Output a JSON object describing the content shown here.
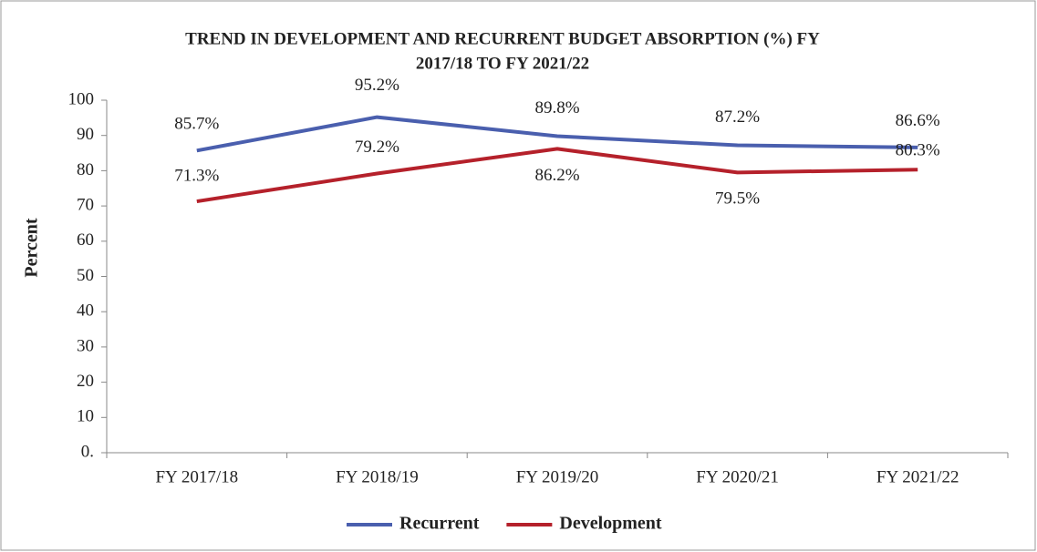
{
  "chart_data": {
    "type": "line",
    "title": [
      "TREND IN DEVELOPMENT AND RECURRENT BUDGET ABSORPTION (%) FY",
      "2017/18  TO FY 2021/22"
    ],
    "ylabel": "Percent",
    "categories": [
      "FY 2017/18",
      "FY 2018/19",
      "FY 2019/20",
      "FY 2020/21",
      "FY 2021/22"
    ],
    "series": [
      {
        "name": "Recurrent",
        "color": "#4a5fae",
        "values": [
          85.7,
          95.2,
          89.8,
          87.2,
          86.6
        ],
        "value_labels": [
          "85.7%",
          "95.2%",
          "89.8%",
          "87.2%",
          "86.6%"
        ]
      },
      {
        "name": "Development",
        "color": "#b5212b",
        "values": [
          71.3,
          79.2,
          86.2,
          79.5,
          80.3
        ],
        "value_labels": [
          "71.3%",
          "79.2%",
          "86.2%",
          "79.5%",
          "80.3%"
        ]
      }
    ],
    "ylim": [
      0,
      100
    ],
    "yticks": [
      {
        "value": 0,
        "label": "0."
      },
      10,
      20,
      30,
      40,
      50,
      60,
      70,
      80,
      90,
      100
    ],
    "legend": "bottom"
  }
}
